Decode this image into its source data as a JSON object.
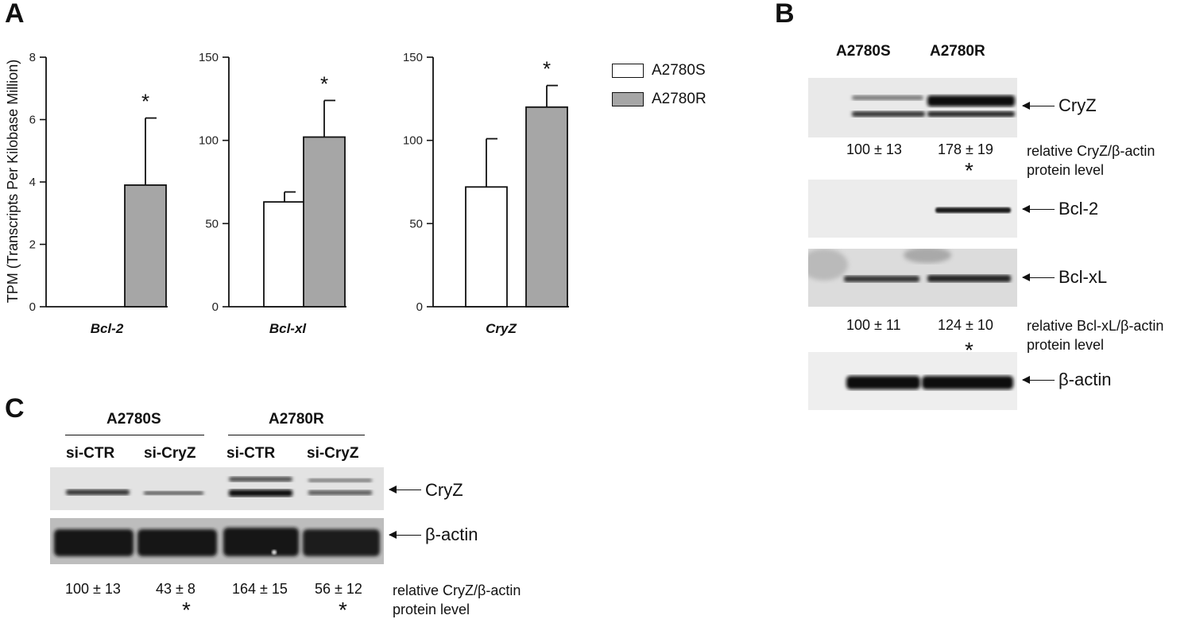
{
  "panels": {
    "a": "A",
    "b": "B",
    "c": "C"
  },
  "chart_data": [
    {
      "type": "bar",
      "categories": [
        "A2780S",
        "A2780R"
      ],
      "values": [
        0,
        3.9
      ],
      "errors": [
        0,
        2.15
      ],
      "xlabel": "Bcl-2",
      "ylabel": "TPM (Transcripts Per Kilobase Million)",
      "ylim": [
        0,
        8
      ],
      "yticks": [
        0,
        2,
        4,
        6,
        8
      ],
      "significance": [
        "",
        "*"
      ]
    },
    {
      "type": "bar",
      "categories": [
        "A2780S",
        "A2780R"
      ],
      "values": [
        63,
        102
      ],
      "errors": [
        6,
        22
      ],
      "xlabel": "Bcl-xl",
      "ylim": [
        0,
        150
      ],
      "yticks": [
        0,
        50,
        100,
        150
      ],
      "significance": [
        "",
        "*"
      ]
    },
    {
      "type": "bar",
      "categories": [
        "A2780S",
        "A2780R"
      ],
      "values": [
        72,
        120
      ],
      "errors": [
        29,
        13
      ],
      "xlabel": "CryZ",
      "ylim": [
        0,
        150
      ],
      "yticks": [
        0,
        50,
        100,
        150
      ],
      "significance": [
        "",
        "*"
      ]
    }
  ],
  "legend": [
    {
      "name": "A2780S",
      "color": "#ffffff"
    },
    {
      "name": "A2780R",
      "color": "#a6a6a6"
    }
  ],
  "panel_b": {
    "headers": [
      "A2780S",
      "A2780R"
    ],
    "blots": [
      {
        "label": "CryZ"
      },
      {
        "label": "Bcl-2"
      },
      {
        "label": "Bcl-xL"
      },
      {
        "label": "β-actin"
      }
    ],
    "quant_cryz": {
      "values": [
        "100 ± 13",
        "178 ± 19"
      ],
      "caption1": "relative CryZ/β-actin",
      "caption2": "protein level",
      "star": "*"
    },
    "quant_bclxl": {
      "values": [
        "100 ± 11",
        "124 ± 10"
      ],
      "caption1": "relative Bcl-xL/β-actin",
      "caption2": "protein level",
      "star": "*"
    }
  },
  "panel_c": {
    "groups": [
      "A2780S",
      "A2780R"
    ],
    "lanes": [
      "si-CTR",
      "si-CryZ",
      "si-CTR",
      "si-CryZ"
    ],
    "blots": [
      {
        "label": "CryZ"
      },
      {
        "label": "β-actin"
      }
    ],
    "quant": [
      "100 ± 13",
      "43 ± 8",
      "164 ± 15",
      "56 ± 12"
    ],
    "caption1": "relative CryZ/β-actin",
    "caption2": "protein level",
    "stars": [
      "*",
      "*"
    ]
  }
}
